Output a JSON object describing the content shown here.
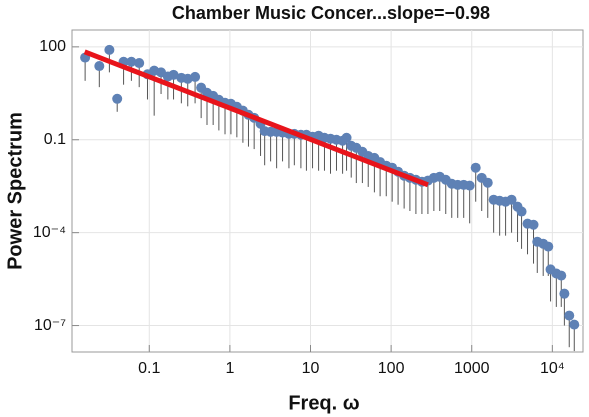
{
  "chart_data": {
    "type": "scatter",
    "title": "Chamber Music Concer...slope=−0.98",
    "xlabel": "Freq. ω",
    "ylabel": "Power Spectrum",
    "xscale": "log",
    "yscale": "log",
    "xlim": [
      0.011,
      24000
    ],
    "ylim": [
      1.4e-08,
      350
    ],
    "xticks": [
      0.1,
      1,
      10,
      100,
      1000,
      {
        "value": 10000,
        "label": "10⁴"
      }
    ],
    "yticks": [
      100,
      0.1,
      {
        "value": 0.0001,
        "label": "10⁻⁴"
      },
      {
        "value": 1e-07,
        "label": "10⁻⁷"
      }
    ],
    "grid": true,
    "series": [
      {
        "color": "#5e81b5",
        "stem_color": "#555555",
        "x": [
          0.016,
          0.024,
          0.032,
          0.04,
          0.048,
          0.06,
          0.075,
          0.095,
          0.115,
          0.14,
          0.17,
          0.2,
          0.25,
          0.3,
          0.37,
          0.44,
          0.52,
          0.62,
          0.73,
          0.87,
          1.03,
          1.22,
          1.45,
          1.7,
          2.0,
          2.4,
          2.7,
          3.2,
          3.8,
          4.5,
          5.4,
          6.3,
          7.6,
          8.9,
          10.6,
          12.6,
          14.9,
          17.7,
          21,
          25,
          28,
          32,
          37,
          44,
          52,
          62,
          73,
          87,
          103,
          122,
          145,
          171,
          203,
          241,
          286,
          339,
          401,
          476,
          565,
          670,
          795,
          943,
          1120,
          1330,
          1580,
          1870,
          2220,
          2630,
          3120,
          3700,
          4150,
          4920,
          5840,
          6500,
          7700,
          8900,
          9500,
          11200,
          12900,
          14100,
          16200,
          18700
        ],
        "values": [
          45,
          24,
          80,
          2.1,
          33,
          33,
          30,
          13,
          17,
          15,
          11,
          12.5,
          10,
          9.3,
          10.7,
          4.8,
          3.3,
          2.6,
          1.95,
          1.56,
          1.45,
          1.16,
          0.87,
          0.64,
          0.51,
          0.33,
          0.19,
          0.18,
          0.18,
          0.17,
          0.155,
          0.155,
          0.145,
          0.145,
          0.125,
          0.135,
          0.116,
          0.108,
          0.1,
          0.093,
          0.116,
          0.064,
          0.055,
          0.041,
          0.03,
          0.026,
          0.019,
          0.0145,
          0.0125,
          0.0093,
          0.0069,
          0.0059,
          0.0051,
          0.0044,
          0.0048,
          0.0059,
          0.0064,
          0.0051,
          0.0038,
          0.0035,
          0.0035,
          0.0033,
          0.0125,
          0.0059,
          0.0041,
          0.00116,
          0.00107,
          0.001,
          0.00116,
          0.00069,
          0.00048,
          0.000195,
          0.00018,
          5.1e-05,
          4.4e-05,
          3.55e-05,
          6.5e-06,
          4.8e-06,
          4.1e-06,
          1.07e-06,
          2.1e-07,
          1.07e-07
        ],
        "low": [
          8,
          5,
          15,
          0.8,
          6,
          8,
          5,
          2,
          0.6,
          3,
          2,
          2,
          1.5,
          1.2,
          1.5,
          0.5,
          0.3,
          0.3,
          0.2,
          0.15,
          0.15,
          0.12,
          0.08,
          0.06,
          0.05,
          0.03,
          0.015,
          0.02,
          0.012,
          0.02,
          0.012,
          0.015,
          0.012,
          0.01,
          0.012,
          0.01,
          0.01,
          0.008,
          0.01,
          0.008,
          0.01,
          0.006,
          0.004,
          0.004,
          0.003,
          0.002,
          0.0015,
          0.0015,
          0.001,
          0.0008,
          0.0006,
          0.0005,
          0.0004,
          0.0004,
          0.0004,
          0.0005,
          0.0005,
          0.0004,
          0.0003,
          0.0003,
          0.0003,
          0.0002,
          0.001,
          0.0005,
          0.0003,
          0.0001,
          8e-05,
          8e-05,
          0.0001,
          5e-05,
          3e-05,
          2e-05,
          1e-05,
          5e-06,
          4e-06,
          4e-06,
          6e-07,
          4e-07,
          4e-07,
          1e-07,
          2e-08,
          1.5e-08
        ]
      }
    ],
    "fit": {
      "color": "#e8141b",
      "x": [
        0.0158,
        286
      ],
      "y": [
        69,
        0.0035
      ]
    }
  }
}
